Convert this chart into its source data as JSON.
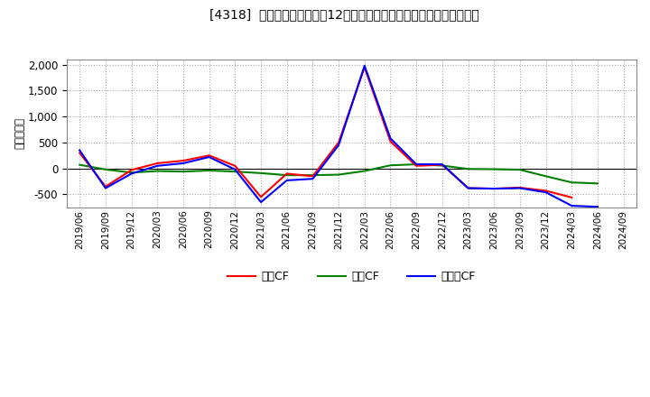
{
  "title": "[4318]  キャッシュフローの12か月移動合計の対前年同期増減額の推移",
  "ylabel": "（百万円）",
  "background_color": "#ffffff",
  "plot_bg_color": "#ffffff",
  "grid_color": "#aaaaaa",
  "x_labels": [
    "2019/06",
    "2019/09",
    "2019/12",
    "2020/03",
    "2020/06",
    "2020/09",
    "2020/12",
    "2021/03",
    "2021/06",
    "2021/09",
    "2021/12",
    "2022/03",
    "2022/06",
    "2022/09",
    "2022/12",
    "2023/03",
    "2023/06",
    "2023/09",
    "2023/12",
    "2024/03",
    "2024/06",
    "2024/09"
  ],
  "eigyo_cf": [
    300,
    -350,
    -30,
    100,
    150,
    250,
    50,
    -550,
    -100,
    -150,
    500,
    1950,
    520,
    50,
    70,
    -380,
    -390,
    -370,
    -430,
    -560,
    null,
    null
  ],
  "toshi_cf": [
    70,
    -20,
    -80,
    -50,
    -60,
    -40,
    -60,
    -90,
    -130,
    -130,
    -120,
    -50,
    60,
    80,
    55,
    -10,
    -15,
    -25,
    -150,
    -270,
    -290,
    null
  ],
  "free_cf": [
    350,
    -380,
    -100,
    50,
    100,
    220,
    -20,
    -650,
    -230,
    -200,
    450,
    1980,
    580,
    80,
    80,
    -380,
    -390,
    -380,
    -460,
    -720,
    -740,
    null
  ],
  "ylim": [
    -750,
    2100
  ],
  "yticks": [
    -500,
    0,
    500,
    1000,
    1500,
    2000
  ],
  "line_colors": {
    "eigyo": "#ff0000",
    "toshi": "#008000",
    "free": "#0000ff"
  },
  "legend_labels": {
    "eigyo": "営業CF",
    "toshi": "投資CF",
    "free": "フリーCF"
  }
}
